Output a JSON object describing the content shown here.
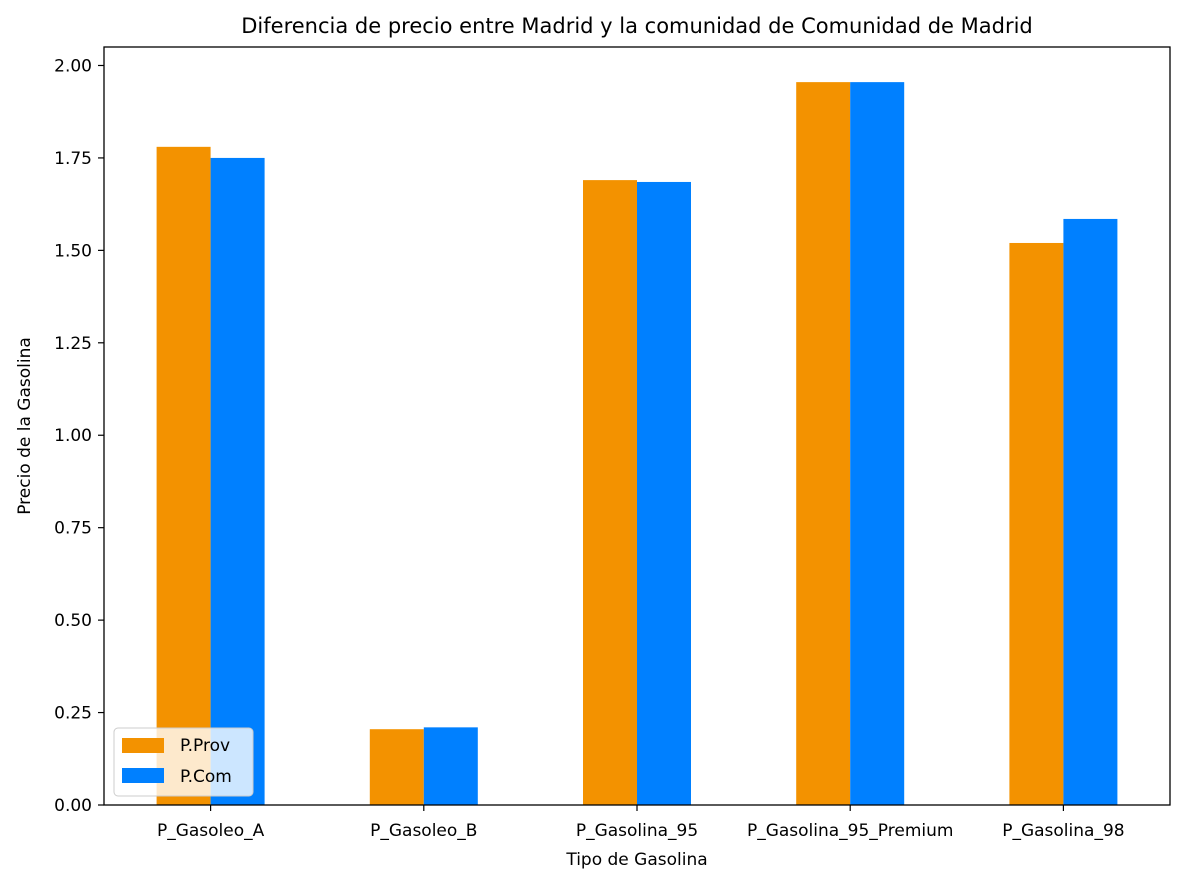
{
  "chart_data": {
    "type": "bar",
    "title": "Diferencia de precio entre Madrid y la comunidad de Comunidad de Madrid",
    "xlabel": "Tipo de Gasolina",
    "ylabel": "Precio de la Gasolina",
    "categories": [
      "P_Gasoleo_A",
      "P_Gasoleo_B",
      "P_Gasolina_95",
      "P_Gasolina_95_Premium",
      "P_Gasolina_98"
    ],
    "series": [
      {
        "name": "P.Prov",
        "color": "#F39200",
        "values": [
          1.78,
          0.205,
          1.69,
          1.955,
          1.52
        ]
      },
      {
        "name": "P.Com",
        "color": "#0080FF",
        "values": [
          1.75,
          0.21,
          1.685,
          1.955,
          1.585
        ]
      }
    ],
    "ylim": [
      0,
      2.05
    ],
    "yticks": [
      "0.00",
      "0.25",
      "0.50",
      "0.75",
      "1.00",
      "1.25",
      "1.50",
      "1.75",
      "2.00"
    ],
    "grid": false,
    "legend_position": "lower-left"
  }
}
